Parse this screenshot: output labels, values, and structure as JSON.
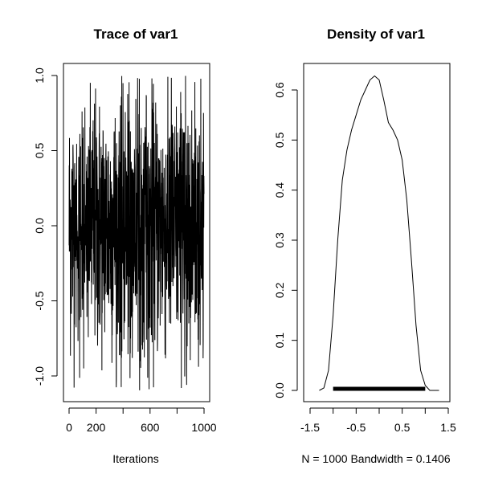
{
  "chart_data": [
    {
      "type": "line",
      "title": "Trace of var1",
      "xlabel": "Iterations",
      "ylabel": "",
      "xlim": [
        0,
        1000
      ],
      "ylim": [
        -1.1,
        1.0
      ],
      "x_ticks": [
        "0",
        "200",
        "600",
        "1000"
      ],
      "x_tick_values": [
        0,
        200,
        600,
        1000
      ],
      "y_ticks": [
        "-1.0",
        "-0.5",
        "0.0",
        "0.5",
        "1.0"
      ],
      "y_tick_values": [
        -1.0,
        -0.5,
        0.0,
        0.5,
        1.0
      ],
      "series": [
        {
          "n": 1000,
          "min": -1.1,
          "max": 1.0,
          "values_note": "noisy MCMC trace between about -1.1 and 1.0"
        }
      ]
    },
    {
      "type": "line",
      "title": "Density of var1",
      "xlabel": "N = 1000   Bandwidth = 0.1406",
      "ylabel": "",
      "xlim": [
        -1.5,
        1.5
      ],
      "ylim": [
        0,
        0.63
      ],
      "x_ticks": [
        "-1.5",
        "-0.5",
        "0.5",
        "1.5"
      ],
      "x_tick_values": [
        -1.5,
        -0.5,
        0.5,
        1.5
      ],
      "y_ticks": [
        "0.0",
        "0.1",
        "0.2",
        "0.3",
        "0.4",
        "0.5",
        "0.6"
      ],
      "y_tick_values": [
        0.0,
        0.1,
        0.2,
        0.3,
        0.4,
        0.5,
        0.6
      ],
      "x": [
        -1.3,
        -1.2,
        -1.1,
        -1.0,
        -0.9,
        -0.8,
        -0.7,
        -0.6,
        -0.5,
        -0.4,
        -0.3,
        -0.2,
        -0.1,
        0.0,
        0.1,
        0.2,
        0.3,
        0.4,
        0.5,
        0.6,
        0.7,
        0.8,
        0.9,
        1.0,
        1.1,
        1.2,
        1.3
      ],
      "y": [
        0.0,
        0.005,
        0.04,
        0.15,
        0.3,
        0.42,
        0.48,
        0.52,
        0.55,
        0.58,
        0.6,
        0.62,
        0.628,
        0.62,
        0.58,
        0.535,
        0.52,
        0.5,
        0.46,
        0.38,
        0.26,
        0.13,
        0.04,
        0.01,
        0.0,
        0.0,
        0.0
      ],
      "rug": {
        "from": -1.0,
        "to": 1.0
      }
    }
  ]
}
